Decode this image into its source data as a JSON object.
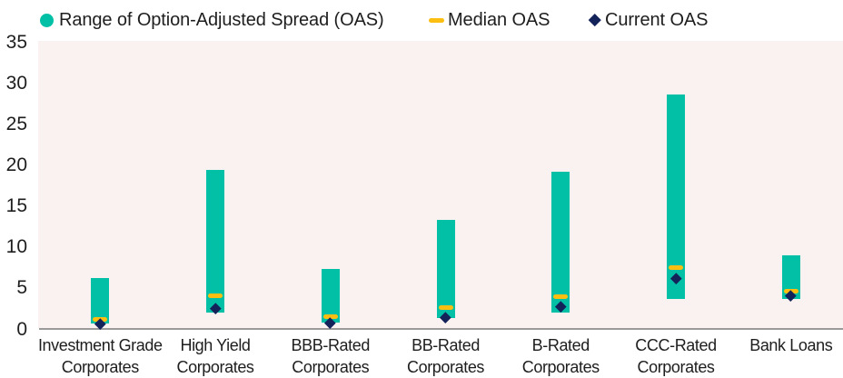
{
  "legend": {
    "items": [
      {
        "id": "range",
        "marker": "circle-icon",
        "label": "Range of Option-Adjusted Spread (OAS)"
      },
      {
        "id": "median",
        "marker": "dash-icon",
        "label": "Median OAS"
      },
      {
        "id": "current",
        "marker": "diamond-icon",
        "label": "Current OAS"
      }
    ]
  },
  "colors": {
    "range_teal": "#02c0a6",
    "median_gold": "#fdbe12",
    "current_navy": "#14225a",
    "plot_background": "#faf2f0",
    "axis_line": "#9a9a9a",
    "text": "#1e1e1e",
    "page_background": "#ffffff"
  },
  "chart_data": {
    "type": "bar",
    "subtype": "floating-range-bar-with-median-and-current-markers",
    "title": "",
    "xlabel": "",
    "ylabel": "",
    "ylim": [
      0,
      35
    ],
    "ytick_step": 5,
    "yticks": [
      0,
      5,
      10,
      15,
      20,
      25,
      30,
      35
    ],
    "grid": false,
    "legend_position": "top",
    "categories": [
      "Investment Grade Corporates",
      "High Yield Corporates",
      "BBB-Rated Corporates",
      "BB-Rated Corporates",
      "B-Rated Corporates",
      "CCC-Rated Corporates",
      "Bank Loans"
    ],
    "category_label_lines": [
      [
        "Investment Grade",
        "Corporates"
      ],
      [
        "High Yield",
        "Corporates"
      ],
      [
        "BBB-Rated",
        "Corporates"
      ],
      [
        "BB-Rated",
        "Corporates"
      ],
      [
        "B-Rated",
        "Corporates"
      ],
      [
        "CCC-Rated",
        "Corporates"
      ],
      [
        "Bank Loans"
      ]
    ],
    "series": [
      {
        "name": "Range of Option-Adjusted Spread (OAS)",
        "type": "range",
        "low": [
          0.6,
          1.9,
          0.7,
          1.2,
          1.9,
          3.5,
          3.5
        ],
        "high": [
          6.1,
          19.3,
          7.2,
          13.2,
          19.1,
          28.5,
          8.9
        ]
      },
      {
        "name": "Median OAS",
        "type": "tick-marker",
        "values": [
          1.1,
          3.9,
          1.4,
          2.5,
          3.8,
          7.4,
          4.5
        ]
      },
      {
        "name": "Current OAS",
        "type": "diamond-marker",
        "values": [
          0.5,
          2.4,
          0.6,
          1.3,
          2.6,
          6.1,
          3.9
        ]
      }
    ]
  }
}
